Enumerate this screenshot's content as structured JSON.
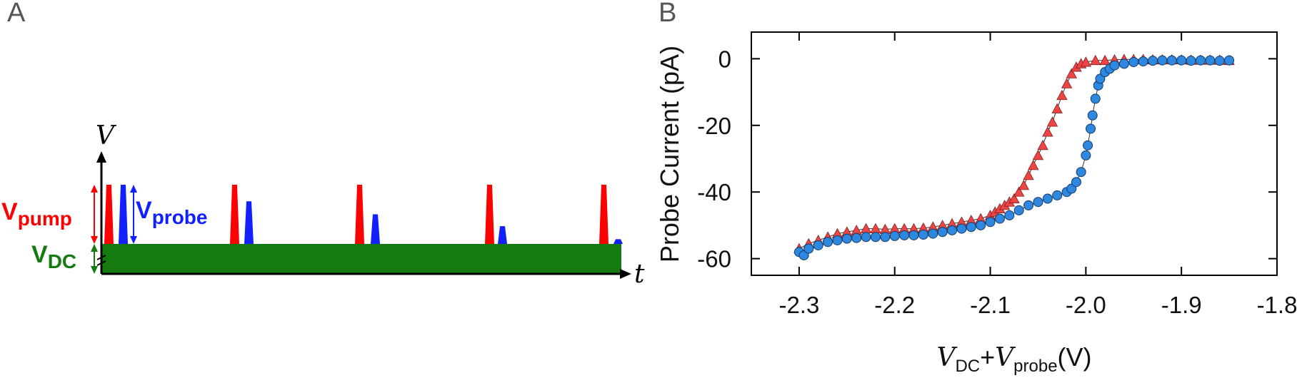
{
  "panel_a": {
    "label": "A",
    "axis_v": "V",
    "axis_t": "t",
    "label_pump_main": "V",
    "label_pump_sub": "pump",
    "label_probe_main": "V",
    "label_probe_sub": "probe",
    "label_dc_main": "V",
    "label_dc_sub": "DC",
    "colors": {
      "pump": "#ff0000",
      "probe": "#1020ff",
      "dc": "#157a12",
      "axis": "#000000"
    },
    "probe_heights": [
      1.0,
      0.72,
      0.5,
      0.3,
      0.08
    ]
  },
  "chart_data": {
    "panel_label": "B",
    "type": "scatter",
    "xlabel_main_1": "V",
    "xlabel_sub_1": "DC",
    "xlabel_plus": "+",
    "xlabel_main_2": "V",
    "xlabel_sub_2": "probe",
    "xlabel_unit": "(V)",
    "ylabel": "Probe Current (pA)",
    "xlim": [
      -2.35,
      -1.8
    ],
    "ylim": [
      -65,
      8
    ],
    "xticks": [
      -2.3,
      -2.2,
      -2.1,
      -2.0,
      -1.9,
      -1.8
    ],
    "xtick_labels": [
      "-2.3",
      "-2.2",
      "-2.1",
      "-2.0",
      "-1.9",
      "-1.8"
    ],
    "yticks": [
      0,
      -20,
      -40,
      -60
    ],
    "ytick_labels": [
      "0",
      "-20",
      "-40",
      "-60"
    ],
    "grid": false,
    "series": [
      {
        "marker": "triangle",
        "color": "#ee4444",
        "points": [
          [
            -2.3,
            -57.0
          ],
          [
            -2.29,
            -55.5
          ],
          [
            -2.28,
            -54.5
          ],
          [
            -2.27,
            -53.5
          ],
          [
            -2.26,
            -52.5
          ],
          [
            -2.25,
            -52.0
          ],
          [
            -2.24,
            -51.5
          ],
          [
            -2.23,
            -51.0
          ],
          [
            -2.22,
            -51.0
          ],
          [
            -2.21,
            -51.2
          ],
          [
            -2.2,
            -51.0
          ],
          [
            -2.19,
            -51.0
          ],
          [
            -2.18,
            -51.0
          ],
          [
            -2.17,
            -50.8
          ],
          [
            -2.16,
            -50.5
          ],
          [
            -2.15,
            -50.0
          ],
          [
            -2.14,
            -49.5
          ],
          [
            -2.13,
            -49.0
          ],
          [
            -2.12,
            -48.5
          ],
          [
            -2.11,
            -48.0
          ],
          [
            -2.1,
            -47.0
          ],
          [
            -2.095,
            -46.0
          ],
          [
            -2.09,
            -45.0
          ],
          [
            -2.085,
            -44.0
          ],
          [
            -2.08,
            -43.0
          ],
          [
            -2.075,
            -42.0
          ],
          [
            -2.07,
            -40.0
          ],
          [
            -2.065,
            -38.0
          ],
          [
            -2.06,
            -35.0
          ],
          [
            -2.055,
            -32.0
          ],
          [
            -2.05,
            -29.0
          ],
          [
            -2.045,
            -26.0
          ],
          [
            -2.04,
            -22.0
          ],
          [
            -2.035,
            -19.0
          ],
          [
            -2.03,
            -15.0
          ],
          [
            -2.025,
            -11.0
          ],
          [
            -2.02,
            -7.5
          ],
          [
            -2.015,
            -4.5
          ],
          [
            -2.01,
            -2.5
          ],
          [
            -2.005,
            -1.5
          ],
          [
            -2.0,
            -1.0
          ],
          [
            -1.99,
            -0.5
          ],
          [
            -1.98,
            -0.5
          ],
          [
            -1.97,
            -0.3
          ],
          [
            -1.96,
            -0.2
          ],
          [
            -1.95,
            -0.2
          ],
          [
            -1.94,
            -0.2
          ],
          [
            -1.93,
            -0.3
          ],
          [
            -1.92,
            -0.3
          ],
          [
            -1.91,
            -0.3
          ],
          [
            -1.9,
            -0.3
          ],
          [
            -1.89,
            -0.4
          ],
          [
            -1.88,
            -0.4
          ],
          [
            -1.87,
            -0.4
          ],
          [
            -1.86,
            -0.4
          ],
          [
            -1.85,
            -0.5
          ]
        ]
      },
      {
        "marker": "circle",
        "color": "#2e88e0",
        "points": [
          [
            -2.3,
            -58.0
          ],
          [
            -2.295,
            -59.0
          ],
          [
            -2.29,
            -57.0
          ],
          [
            -2.28,
            -56.0
          ],
          [
            -2.27,
            -55.0
          ],
          [
            -2.26,
            -54.5
          ],
          [
            -2.25,
            -54.0
          ],
          [
            -2.24,
            -53.8
          ],
          [
            -2.23,
            -53.5
          ],
          [
            -2.22,
            -53.5
          ],
          [
            -2.21,
            -53.5
          ],
          [
            -2.2,
            -53.2
          ],
          [
            -2.19,
            -53.0
          ],
          [
            -2.18,
            -53.0
          ],
          [
            -2.17,
            -52.8
          ],
          [
            -2.16,
            -52.5
          ],
          [
            -2.15,
            -52.0
          ],
          [
            -2.14,
            -51.5
          ],
          [
            -2.13,
            -51.0
          ],
          [
            -2.12,
            -50.5
          ],
          [
            -2.11,
            -50.0
          ],
          [
            -2.1,
            -49.0
          ],
          [
            -2.09,
            -48.0
          ],
          [
            -2.08,
            -47.0
          ],
          [
            -2.07,
            -45.5
          ],
          [
            -2.06,
            -44.0
          ],
          [
            -2.05,
            -43.0
          ],
          [
            -2.04,
            -42.0
          ],
          [
            -2.03,
            -41.0
          ],
          [
            -2.02,
            -40.0
          ],
          [
            -2.015,
            -39.0
          ],
          [
            -2.01,
            -37.0
          ],
          [
            -2.005,
            -34.0
          ],
          [
            -2.0,
            -29.0
          ],
          [
            -1.998,
            -26.0
          ],
          [
            -1.995,
            -21.0
          ],
          [
            -1.993,
            -17.0
          ],
          [
            -1.99,
            -12.0
          ],
          [
            -1.987,
            -8.0
          ],
          [
            -1.985,
            -6.0
          ],
          [
            -1.98,
            -4.0
          ],
          [
            -1.975,
            -3.0
          ],
          [
            -1.97,
            -2.0
          ],
          [
            -1.96,
            -1.5
          ],
          [
            -1.95,
            -1.0
          ],
          [
            -1.94,
            -0.8
          ],
          [
            -1.93,
            -0.6
          ],
          [
            -1.92,
            -0.5
          ],
          [
            -1.91,
            -0.5
          ],
          [
            -1.9,
            -0.5
          ],
          [
            -1.89,
            -0.6
          ],
          [
            -1.88,
            -0.5
          ],
          [
            -1.87,
            -0.5
          ],
          [
            -1.86,
            -0.6
          ],
          [
            -1.85,
            -0.5
          ]
        ]
      }
    ]
  }
}
